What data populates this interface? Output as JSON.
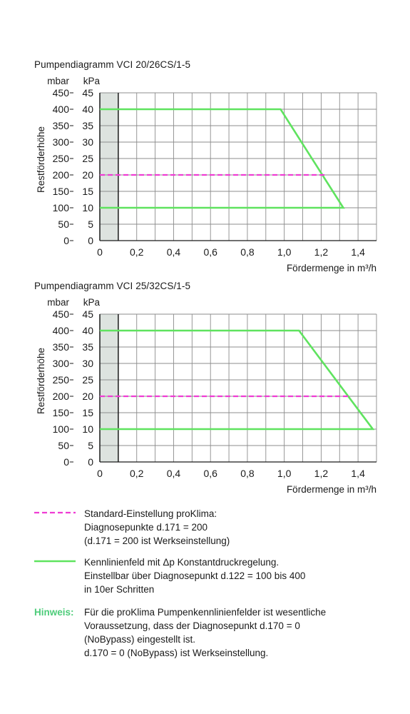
{
  "chart_data": [
    {
      "type": "line",
      "title": "Pumpendiagramm VCI 20/26CS/1-5",
      "xlabel": "Fördermenge in m³/h",
      "ylabel": "Restförderhöhe",
      "y_unit_left": "mbar",
      "y_unit_right": "kPa",
      "xlim": [
        0,
        1.5
      ],
      "ylim": [
        0,
        450
      ],
      "x_ticks": [
        "0",
        "0,2",
        "0,4",
        "0,6",
        "0,8",
        "1,0",
        "1,2",
        "1,4"
      ],
      "y_ticks_mbar": [
        "0",
        "50",
        "100",
        "150",
        "200",
        "250",
        "300",
        "350",
        "400",
        "450"
      ],
      "y_ticks_kpa": [
        "0",
        "5",
        "10",
        "15",
        "20",
        "25",
        "30",
        "35",
        "40",
        "45"
      ],
      "shaded_region_x": [
        0,
        0.1
      ],
      "grid": true,
      "series": [
        {
          "style": "solid",
          "color": "#5fe35f",
          "x": [
            0,
            0.98,
            1.32,
            0
          ],
          "y": [
            400,
            400,
            100,
            100
          ]
        },
        {
          "style": "dashed",
          "color": "#f03cd4",
          "x": [
            0,
            1.22
          ],
          "y": [
            200,
            200
          ]
        }
      ]
    },
    {
      "type": "line",
      "title": "Pumpendiagramm VCI 25/32CS/1-5",
      "xlabel": "Fördermenge in m³/h",
      "ylabel": "Restförderhöhe",
      "y_unit_left": "mbar",
      "y_unit_right": "kPa",
      "xlim": [
        0,
        1.5
      ],
      "ylim": [
        0,
        450
      ],
      "x_ticks": [
        "0",
        "0,2",
        "0,4",
        "0,6",
        "0,8",
        "1,0",
        "1,2",
        "1,4"
      ],
      "y_ticks_mbar": [
        "0",
        "50",
        "100",
        "150",
        "200",
        "250",
        "300",
        "350",
        "400",
        "450"
      ],
      "y_ticks_kpa": [
        "0",
        "5",
        "10",
        "15",
        "20",
        "25",
        "30",
        "35",
        "40",
        "45"
      ],
      "shaded_region_x": [
        0,
        0.1
      ],
      "grid": true,
      "series": [
        {
          "style": "solid",
          "color": "#5fe35f",
          "x": [
            0,
            1.08,
            1.48,
            0
          ],
          "y": [
            400,
            400,
            100,
            100
          ]
        },
        {
          "style": "dashed",
          "color": "#f03cd4",
          "x": [
            0,
            1.35
          ],
          "y": [
            200,
            200
          ]
        }
      ]
    }
  ],
  "legend": {
    "dashed": [
      "Standard-Einstellung proKlima:",
      "Diagnosepunkte d.171 = 200",
      "(d.171 = 200 ist Werkseinstellung)"
    ],
    "solid": [
      "Kennlinienfeld mit Δp Konstantdruckregelung.",
      "Einstellbar über Diagnosepunkt d.122 = 100 bis 400",
      "in 10er Schritten"
    ]
  },
  "note": {
    "label": "Hinweis:",
    "lines": [
      "Für die proKlima Pumpenkennlinienfelder ist wesentliche",
      "Voraussetzung, dass der Diagnosepunkt d.170 = 0",
      "(NoBypass) eingestellt ist.",
      "d.170 = 0 (NoBypass) ist Werkseinstellung."
    ]
  }
}
